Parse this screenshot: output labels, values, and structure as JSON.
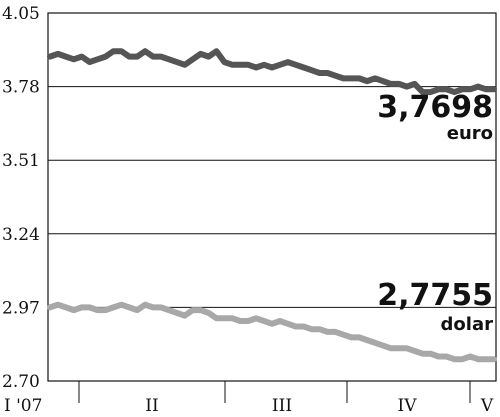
{
  "chart_data": {
    "type": "line",
    "title": "",
    "xlabel": "",
    "ylabel": "",
    "ylim": [
      2.7,
      4.05
    ],
    "yticks": [
      "4.05",
      "3.78",
      "3.51",
      "3.24",
      "2.97",
      "2.70"
    ],
    "xticks": [
      "I '07",
      "II",
      "III",
      "IV",
      "V"
    ],
    "grid": true,
    "colors": {
      "euro": "#555555",
      "dolar": "#a8a8a8",
      "grid": "#111111"
    },
    "series": [
      {
        "name": "euro",
        "last_value_label": "3,7698",
        "values": [
          3.89,
          3.9,
          3.89,
          3.88,
          3.89,
          3.87,
          3.88,
          3.89,
          3.91,
          3.91,
          3.89,
          3.89,
          3.91,
          3.89,
          3.89,
          3.88,
          3.87,
          3.86,
          3.88,
          3.9,
          3.89,
          3.91,
          3.87,
          3.86,
          3.86,
          3.86,
          3.85,
          3.86,
          3.85,
          3.86,
          3.87,
          3.86,
          3.85,
          3.84,
          3.83,
          3.83,
          3.82,
          3.81,
          3.81,
          3.81,
          3.8,
          3.81,
          3.8,
          3.79,
          3.79,
          3.78,
          3.79,
          3.76,
          3.76,
          3.77,
          3.77,
          3.76,
          3.77,
          3.77,
          3.78,
          3.77,
          3.77
        ]
      },
      {
        "name": "dolar",
        "last_value_label": "2,7755",
        "values": [
          2.97,
          2.98,
          2.97,
          2.96,
          2.97,
          2.97,
          2.96,
          2.96,
          2.97,
          2.98,
          2.97,
          2.96,
          2.98,
          2.97,
          2.97,
          2.96,
          2.95,
          2.94,
          2.96,
          2.96,
          2.95,
          2.93,
          2.93,
          2.93,
          2.92,
          2.92,
          2.93,
          2.92,
          2.91,
          2.92,
          2.91,
          2.9,
          2.9,
          2.89,
          2.89,
          2.88,
          2.88,
          2.87,
          2.86,
          2.86,
          2.85,
          2.84,
          2.83,
          2.82,
          2.82,
          2.82,
          2.81,
          2.8,
          2.8,
          2.79,
          2.79,
          2.78,
          2.78,
          2.79,
          2.78,
          2.78,
          2.78
        ]
      }
    ]
  }
}
